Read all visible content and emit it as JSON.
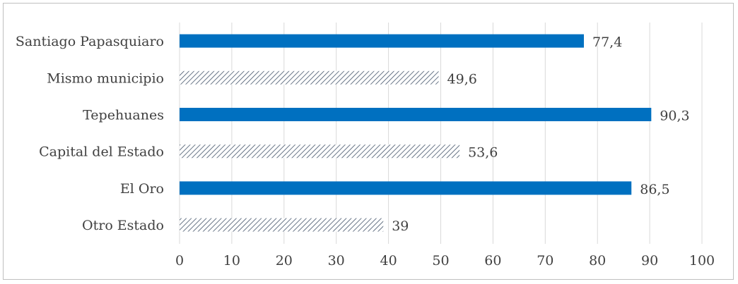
{
  "chart_data": {
    "type": "bar",
    "orientation": "horizontal",
    "categories": [
      "Santiago Papasquiaro",
      "Mismo municipio",
      "Tepehuanes",
      "Capital del Estado",
      "El Oro",
      "Otro Estado"
    ],
    "values": [
      77.4,
      49.6,
      90.3,
      53.6,
      86.5,
      39
    ],
    "value_labels": [
      "77,4",
      "49,6",
      "90,3",
      "53,6",
      "86,5",
      "39"
    ],
    "bar_styles": [
      "solid",
      "hatched",
      "solid",
      "hatched",
      "solid",
      "hatched"
    ],
    "xlim": [
      0,
      100
    ],
    "xticks": [
      0,
      10,
      20,
      30,
      40,
      50,
      60,
      70,
      80,
      90,
      100
    ],
    "grid": true,
    "colors": {
      "solid": "#0070c0",
      "hatch": "#44546a",
      "grid": "#d9d9d9",
      "text": "#404040"
    }
  }
}
